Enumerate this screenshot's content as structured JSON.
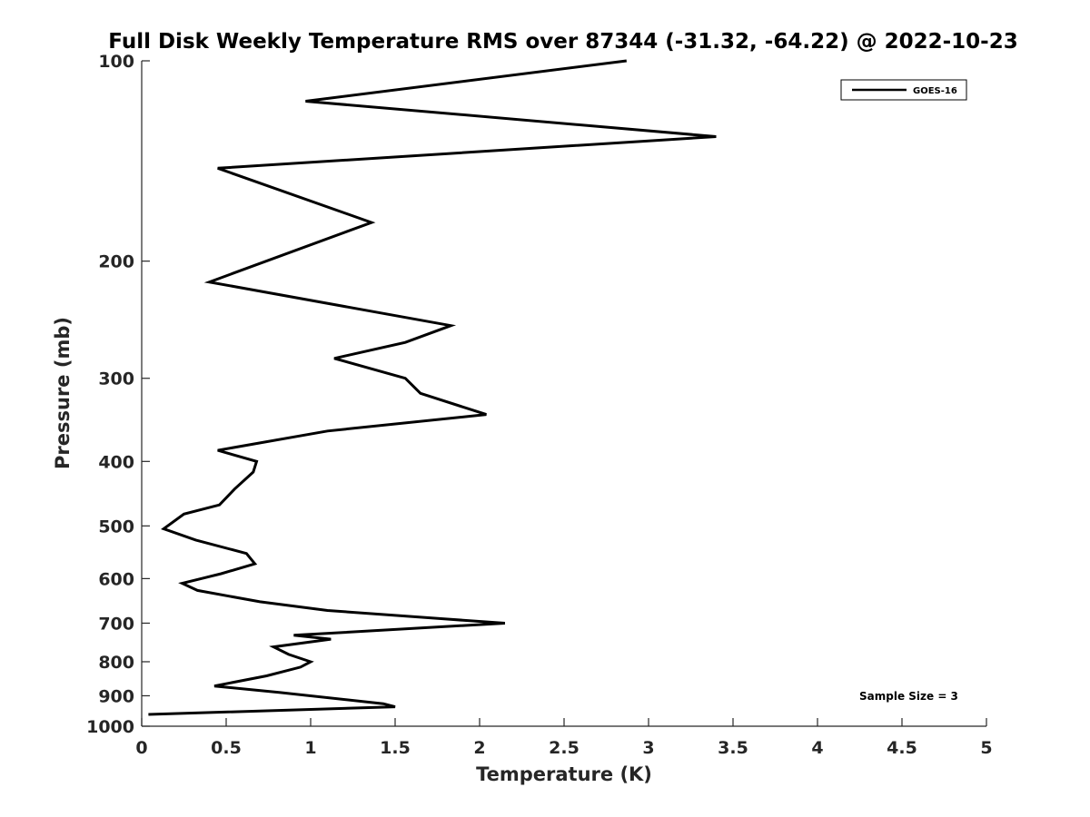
{
  "chart_data": {
    "type": "line",
    "title": "Full Disk Weekly Temperature RMS over 87344 (-31.32, -64.22) @ 2022-10-23",
    "xlabel": "Temperature (K)",
    "ylabel": "Pressure (mb)",
    "xlim": [
      0,
      5
    ],
    "ylim": [
      1000,
      100
    ],
    "y_scale": "log",
    "grid": false,
    "legend_position": "top-right",
    "x_ticks": [
      "0",
      "0.5",
      "1",
      "1.5",
      "2",
      "2.5",
      "3",
      "3.5",
      "4",
      "4.5",
      "5"
    ],
    "y_ticks": [
      "100",
      "200",
      "300",
      "400",
      "500",
      "600",
      "700",
      "800",
      "900",
      "1000"
    ],
    "annotation": "Sample Size = 3",
    "series": [
      {
        "name": "GOES-16",
        "color": "#000000",
        "x": [
          2.87,
          0.97,
          3.4,
          0.45,
          1.36,
          0.4,
          1.83,
          1.56,
          1.14,
          1.56,
          1.65,
          2.04,
          1.1,
          0.45,
          0.68,
          0.66,
          0.55,
          0.46,
          0.25,
          0.13,
          0.32,
          0.62,
          0.67,
          0.47,
          0.24,
          0.33,
          0.7,
          1.1,
          1.8,
          2.15,
          0.9,
          1.12,
          0.78,
          0.87,
          1.0,
          0.94,
          0.74,
          0.43,
          0.82,
          1.43,
          1.5,
          0.04
        ],
        "y": [
          100,
          115,
          130,
          145,
          175,
          215,
          250,
          265,
          280,
          300,
          316,
          340,
          360,
          385,
          400,
          415,
          440,
          465,
          480,
          505,
          525,
          550,
          570,
          590,
          610,
          625,
          650,
          670,
          690,
          700,
          730,
          740,
          760,
          780,
          800,
          815,
          840,
          870,
          890,
          925,
          935,
          960
        ]
      }
    ]
  }
}
